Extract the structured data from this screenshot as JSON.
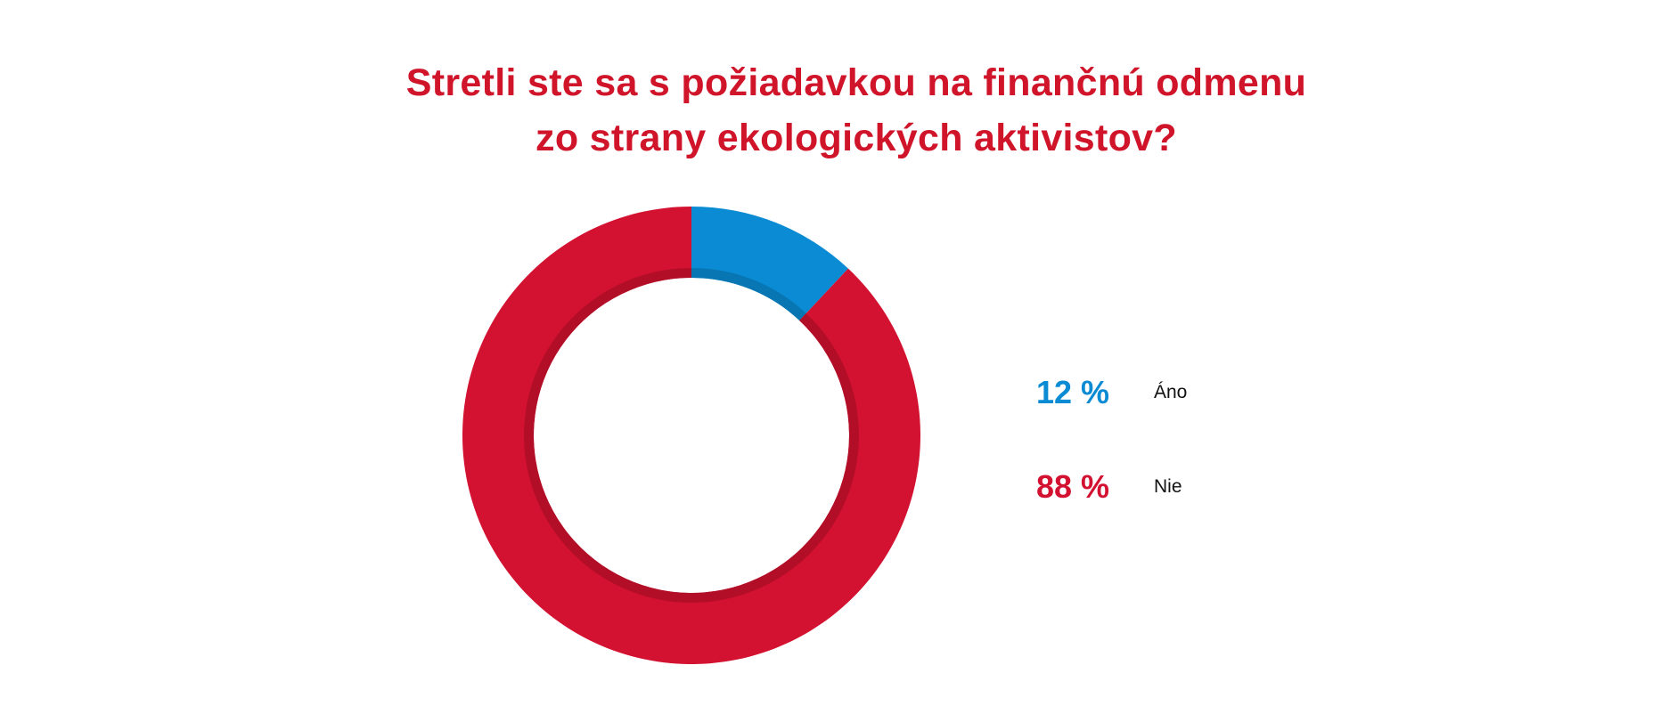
{
  "chart_data": {
    "type": "pie",
    "variant": "donut",
    "title_lines": [
      "Stretli ste sa s požiadavkou na finančnú odmenu",
      "zo strany ekologických aktivistov?"
    ],
    "slices": [
      {
        "label": "Áno",
        "value": 12,
        "value_label": "12 %",
        "color": "#0a8bd3"
      },
      {
        "label": "Nie",
        "value": 88,
        "value_label": "88 %",
        "color": "#d31130"
      }
    ],
    "legend_position": "right"
  }
}
